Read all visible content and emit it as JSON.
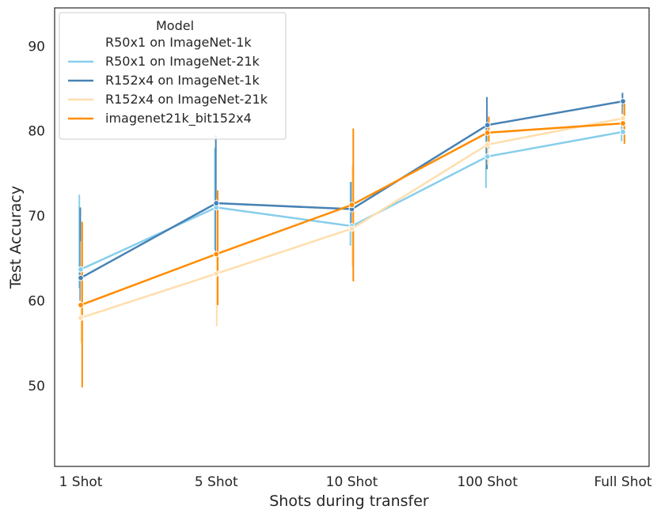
{
  "chart_data": {
    "type": "line",
    "title": "",
    "xlabel": "Shots during transfer",
    "ylabel": "Test Accuracy",
    "categories": [
      "1 Shot",
      "5 Shot",
      "10 Shot",
      "100 Shot",
      "Full Shot"
    ],
    "ylim": [
      40.5,
      94.5
    ],
    "yticks": [
      50,
      60,
      70,
      80,
      90
    ],
    "grid": false,
    "legend": {
      "title": "Model",
      "placement": "top-left"
    },
    "series": [
      {
        "name": "R50x1 on ImageNet-1k",
        "color": "#ffffff",
        "values": [
          null,
          null,
          null,
          null,
          null
        ],
        "ci_low": [
          null,
          null,
          null,
          null,
          null
        ],
        "ci_high": [
          null,
          null,
          null,
          null,
          null
        ]
      },
      {
        "name": "R50x1 on ImageNet-21k",
        "color": "#87ceeb",
        "values": [
          63.7,
          71.0,
          68.8,
          77.0,
          79.9
        ],
        "ci_low": [
          61.5,
          66.0,
          66.5,
          73.3,
          78.8
        ],
        "ci_high": [
          72.5,
          78.0,
          74.0,
          81.0,
          81.0
        ]
      },
      {
        "name": "R152x4 on ImageNet-1k",
        "color": "#4682b4",
        "values": [
          62.7,
          71.5,
          70.8,
          80.7,
          83.5
        ],
        "ci_low": [
          60.0,
          65.5,
          68.5,
          75.5,
          82.0
        ],
        "ci_high": [
          71.0,
          79.5,
          74.0,
          84.0,
          84.5
        ]
      },
      {
        "name": "R152x4 on ImageNet-21k",
        "color": "#ffdead",
        "values": [
          58.0,
          63.2,
          68.5,
          78.4,
          81.5
        ],
        "ci_low": [
          55.0,
          57.0,
          64.0,
          76.0,
          80.0
        ],
        "ci_high": [
          67.0,
          72.0,
          76.0,
          81.0,
          83.0
        ]
      },
      {
        "name": "imagenet21k_bit152x4",
        "color": "#ff8c00",
        "values": [
          59.5,
          65.5,
          71.3,
          79.8,
          80.9
        ],
        "ci_low": [
          49.8,
          59.5,
          62.3,
          78.0,
          78.5
        ],
        "ci_high": [
          69.3,
          73.0,
          80.3,
          81.7,
          83.3
        ]
      }
    ]
  }
}
